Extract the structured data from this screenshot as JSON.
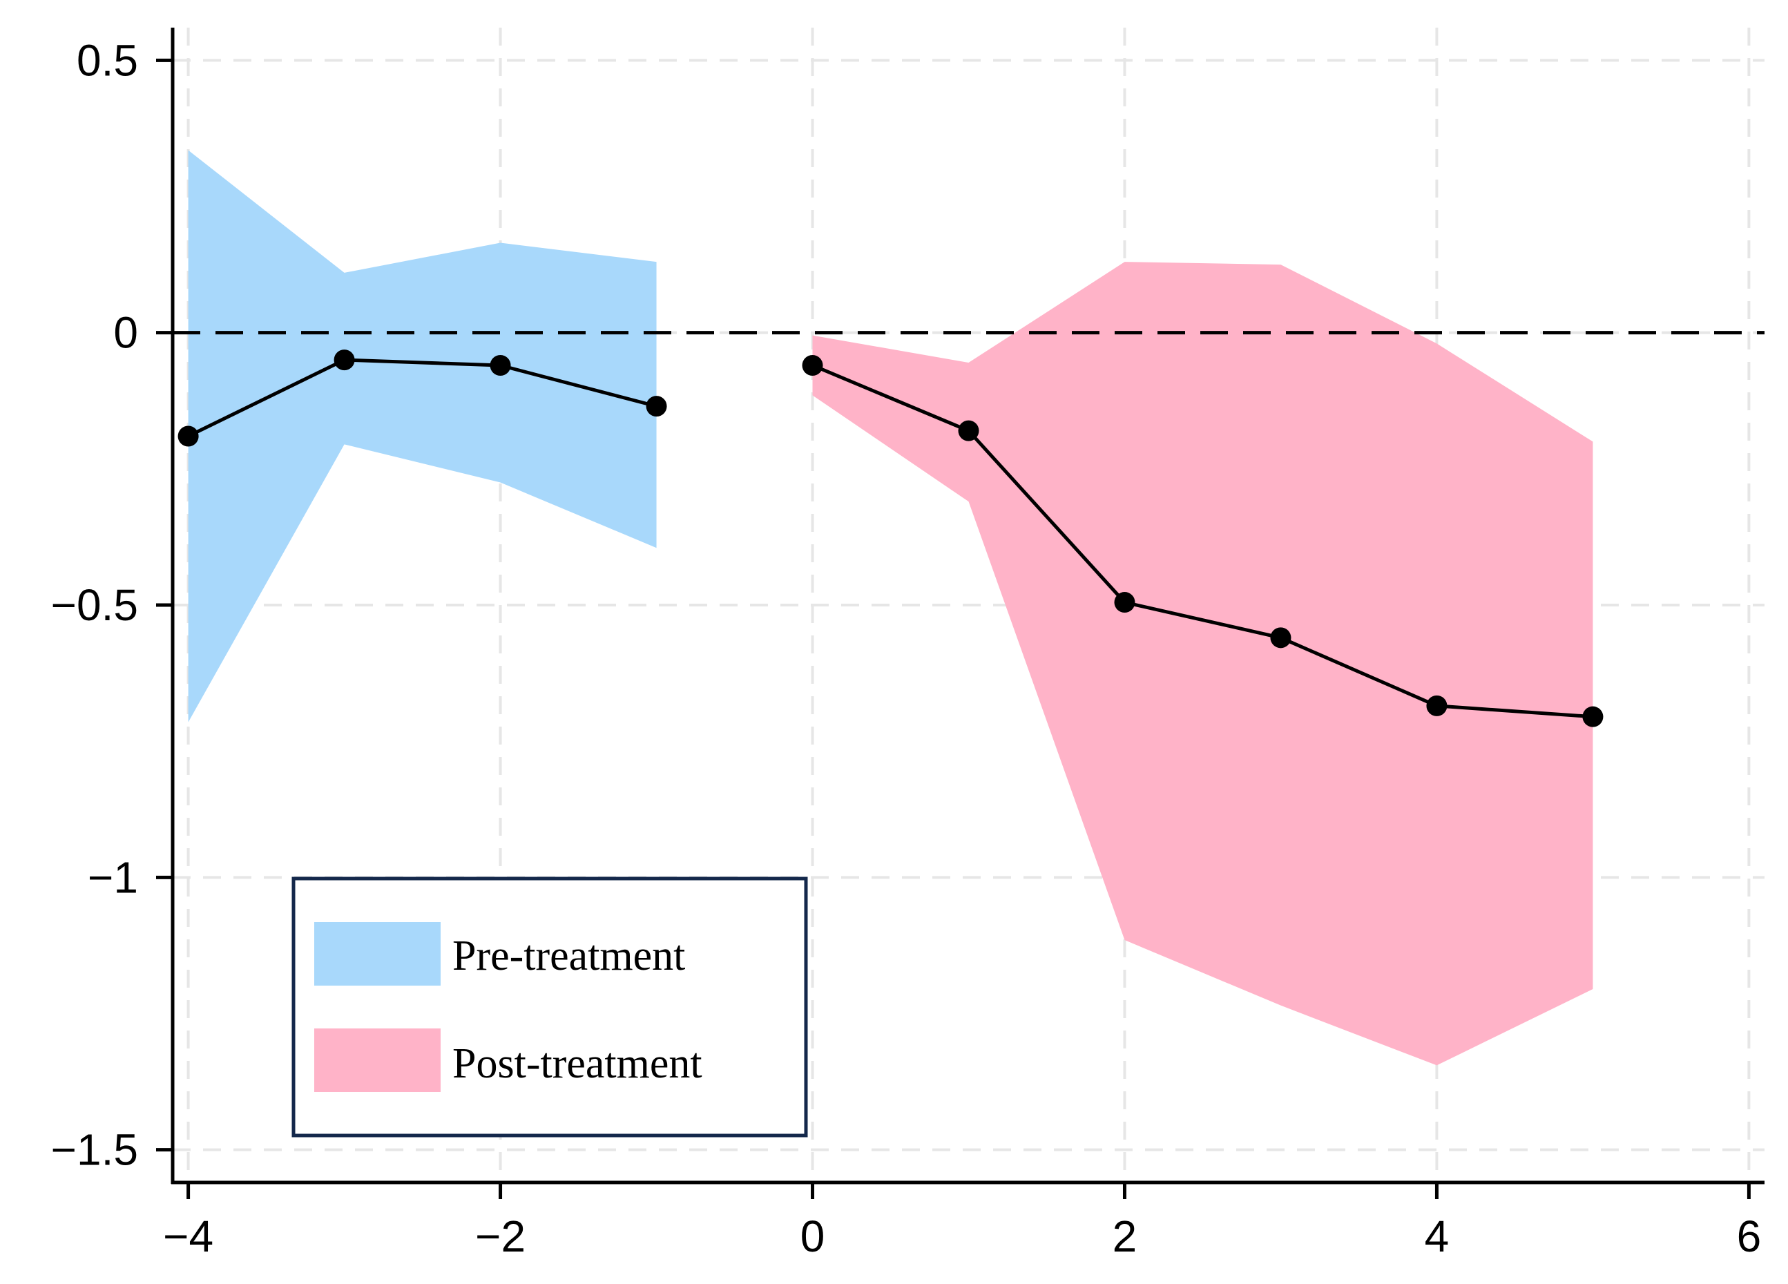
{
  "chart_data": {
    "type": "line",
    "title": "",
    "xlabel": "",
    "ylabel": "",
    "xlim": [
      -4.1,
      6.1
    ],
    "ylim": [
      -1.56,
      0.56
    ],
    "x_ticks": [
      -4,
      -2,
      0,
      2,
      4,
      6
    ],
    "x_tick_labels": [
      "−4",
      "−2",
      "0",
      "2",
      "4",
      "6"
    ],
    "y_ticks": [
      0.5,
      0,
      -0.5,
      -1,
      -1.5
    ],
    "y_tick_labels": [
      "0.5",
      "0",
      "−0.5",
      "−1",
      "−1.5"
    ],
    "grid": true,
    "reference_line": {
      "y": 0,
      "style": "dashed"
    },
    "series": [
      {
        "name": "Pre-treatment",
        "color": "#a8d8fb",
        "x": [
          -4,
          -3,
          -2,
          -1
        ],
        "values": [
          -0.19,
          -0.05,
          -0.06,
          -0.135
        ],
        "ci_upper": [
          0.335,
          0.11,
          0.165,
          0.13
        ],
        "ci_lower": [
          -0.715,
          -0.205,
          -0.275,
          -0.395
        ]
      },
      {
        "name": "Post-treatment",
        "color": "#ffb3c8",
        "x": [
          0,
          1,
          2,
          3,
          4,
          5
        ],
        "values": [
          -0.06,
          -0.18,
          -0.495,
          -0.56,
          -0.685,
          -0.705
        ],
        "ci_upper": [
          -0.005,
          -0.055,
          0.13,
          0.125,
          -0.02,
          -0.2
        ],
        "ci_lower": [
          -0.115,
          -0.31,
          -1.115,
          -1.235,
          -1.345,
          -1.205
        ]
      }
    ],
    "legend": {
      "position": "bottom-left",
      "entries": [
        "Pre-treatment",
        "Post-treatment"
      ]
    }
  }
}
